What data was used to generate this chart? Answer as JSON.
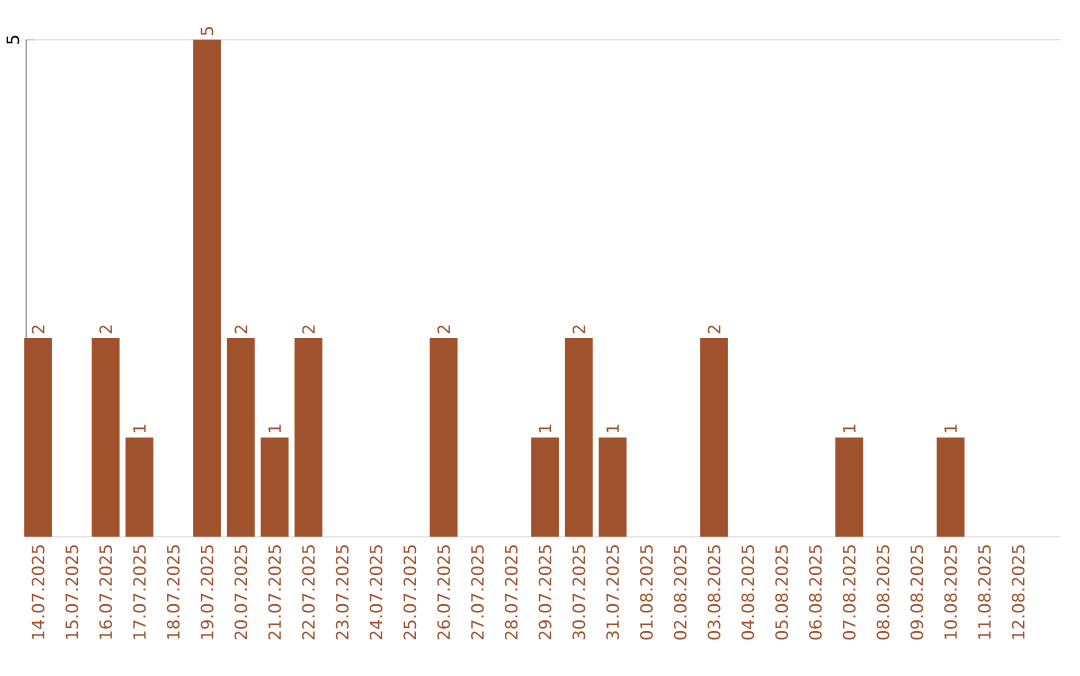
{
  "chart_data": {
    "type": "bar",
    "categories": [
      "14.07.2025",
      "15.07.2025",
      "16.07.2025",
      "17.07.2025",
      "18.07.2025",
      "19.07.2025",
      "20.07.2025",
      "21.07.2025",
      "22.07.2025",
      "23.07.2025",
      "24.07.2025",
      "25.07.2025",
      "26.07.2025",
      "27.07.2025",
      "28.07.2025",
      "29.07.2025",
      "30.07.2025",
      "31.07.2025",
      "01.08.2025",
      "02.08.2025",
      "03.08.2025",
      "04.08.2025",
      "05.08.2025",
      "06.08.2025",
      "07.08.2025",
      "08.08.2025",
      "09.08.2025",
      "10.08.2025",
      "11.08.2025",
      "12.08.2025"
    ],
    "values": [
      2,
      0,
      2,
      1,
      0,
      5,
      2,
      1,
      2,
      0,
      0,
      0,
      2,
      0,
      0,
      1,
      2,
      1,
      0,
      0,
      2,
      0,
      0,
      0,
      1,
      0,
      0,
      1,
      0,
      0
    ],
    "value_labels": [
      "2",
      null,
      "2",
      "1",
      null,
      "5",
      "2",
      "1",
      "2",
      null,
      null,
      null,
      "2",
      null,
      null,
      "1",
      "2",
      "1",
      null,
      null,
      "2",
      null,
      null,
      null,
      "1",
      null,
      null,
      "1",
      null,
      null
    ],
    "color": "#a0522d",
    "ylim": [
      0,
      5
    ],
    "yticks": [
      5
    ]
  }
}
